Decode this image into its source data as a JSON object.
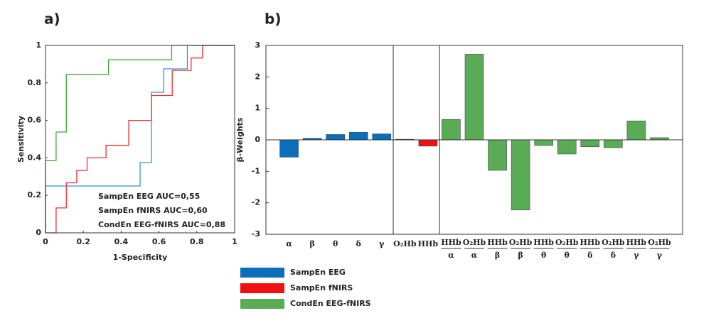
{
  "chart_data": [
    {
      "type": "line",
      "panel": "a)",
      "xlabel": "1-Specificity",
      "ylabel": "Sensitivity",
      "xlim": [
        0,
        1
      ],
      "ylim": [
        0,
        1
      ],
      "xticks": [
        0,
        0.2,
        0.4,
        0.6,
        0.8,
        1
      ],
      "yticks": [
        0,
        0.2,
        0.4,
        0.6,
        0.8,
        1
      ],
      "annotations": [
        "SampEn EEG AUC=0,55",
        "SampEn fNIRS AUC=0,60",
        "CondEn EEG-fNIRS AUC=0,88"
      ],
      "series": [
        {
          "name": "SampEn EEG",
          "color": "#3a8fd6",
          "x": [
            0,
            0,
            0.5,
            0.5,
            0.56,
            0.56,
            0.625,
            0.625,
            0.75,
            0.75,
            1
          ],
          "values": [
            0,
            0.25,
            0.25,
            0.375,
            0.375,
            0.75,
            0.75,
            0.875,
            0.875,
            1,
            1
          ]
        },
        {
          "name": "SampEn fNIRS",
          "color": "#f03030",
          "x": [
            0,
            0.056,
            0.056,
            0.11,
            0.11,
            0.165,
            0.165,
            0.22,
            0.22,
            0.32,
            0.32,
            0.44,
            0.44,
            0.56,
            0.56,
            0.67,
            0.67,
            0.77,
            0.77,
            0.83,
            0.83,
            1
          ],
          "values": [
            0,
            0,
            0.133,
            0.133,
            0.267,
            0.267,
            0.333,
            0.333,
            0.4,
            0.4,
            0.467,
            0.467,
            0.6,
            0.6,
            0.733,
            0.733,
            0.867,
            0.867,
            0.933,
            0.933,
            1,
            1
          ]
        },
        {
          "name": "CondEn EEG-fNIRS",
          "color": "#3aa83a",
          "x": [
            0,
            0,
            0.056,
            0.056,
            0.11,
            0.11,
            0.333,
            0.333,
            0.667,
            0.667,
            1
          ],
          "values": [
            0,
            0.385,
            0.385,
            0.538,
            0.538,
            0.846,
            0.846,
            0.923,
            0.923,
            1,
            1
          ]
        }
      ]
    },
    {
      "type": "bar",
      "panel": "b)",
      "ylabel": "β-Weights",
      "ylim": [
        -3,
        3
      ],
      "yticks": [
        -3,
        -2,
        -1,
        0,
        1,
        2,
        3
      ],
      "categories": [
        "α",
        "β",
        "θ",
        "δ",
        "γ",
        "O₂Hb",
        "HHb",
        [
          "HHb",
          "α"
        ],
        [
          "O₂Hb",
          "α"
        ],
        [
          "HHb",
          "β"
        ],
        [
          "O₂Hb",
          "β"
        ],
        [
          "HHb",
          "θ"
        ],
        [
          "O₂Hb",
          "θ"
        ],
        [
          "HHb",
          "δ"
        ],
        [
          "O₂Hb",
          "δ"
        ],
        [
          "HHb",
          "γ"
        ],
        [
          "O₂Hb",
          "γ"
        ]
      ],
      "series": [
        {
          "name": "SampEn EEG",
          "color": "#0a6ebd",
          "values": [
            -0.55,
            0.05,
            0.17,
            0.24,
            0.19,
            null,
            null,
            null,
            null,
            null,
            null,
            null,
            null,
            null,
            null,
            null,
            null
          ]
        },
        {
          "name": "SampEn fNIRS",
          "color": "#f01010",
          "values": [
            null,
            null,
            null,
            null,
            null,
            0.02,
            -0.2,
            null,
            null,
            null,
            null,
            null,
            null,
            null,
            null,
            null,
            null
          ]
        },
        {
          "name": "CondEn EEG-fNIRS",
          "color": "#5aab55",
          "values": [
            null,
            null,
            null,
            null,
            null,
            null,
            null,
            0.65,
            2.72,
            -0.97,
            -2.23,
            -0.18,
            -0.45,
            -0.22,
            -0.25,
            0.6,
            0.07
          ]
        }
      ]
    }
  ]
}
